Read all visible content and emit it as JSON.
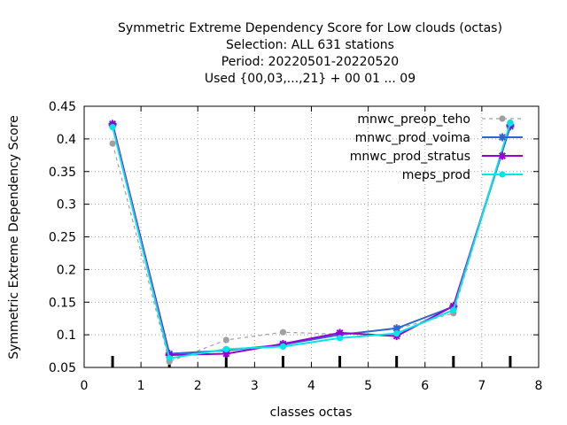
{
  "chart_data": {
    "type": "line",
    "title_lines": [
      "Symmetric Extreme Dependency Score  for Low clouds (octas)",
      "Selection: ALL    631 stations",
      "Period: 20220501-20220520",
      "Used {00,03,...,21} + 00 01 ... 09"
    ],
    "xlabel": "classes octas",
    "ylabel": "Symmetric Extreme Dependency Score",
    "xlim": [
      0,
      8
    ],
    "ylim": [
      0.05,
      0.45
    ],
    "xticks": [
      0,
      1,
      2,
      3,
      4,
      5,
      6,
      7,
      8
    ],
    "yticks": [
      0.05,
      0.1,
      0.15,
      0.2,
      0.25,
      0.3,
      0.35,
      0.4,
      0.45
    ],
    "xtick_labels": [
      "0",
      "1",
      "2",
      "3",
      "4",
      "5",
      "6",
      "7",
      "8"
    ],
    "ytick_labels": [
      "0.05",
      "0.1",
      "0.15",
      "0.2",
      "0.25",
      "0.3",
      "0.35",
      "0.4",
      "0.45"
    ],
    "grid": true,
    "legend_position": "top-right",
    "x": [
      0.5,
      1.5,
      2.5,
      3.5,
      4.5,
      5.5,
      6.5,
      7.5
    ],
    "series": [
      {
        "name": "mnwc_preop_teho",
        "color": "#a0a0a0",
        "dashed": true,
        "marker": "circle",
        "values": [
          0.393,
          0.059,
          0.092,
          0.104,
          0.101,
          0.109,
          0.133,
          0.425
        ]
      },
      {
        "name": "mnwc_prod_voima",
        "color": "#3366cc",
        "dashed": false,
        "marker": "star",
        "values": [
          0.421,
          0.071,
          0.076,
          0.085,
          0.1,
          0.11,
          0.143,
          0.419
        ]
      },
      {
        "name": "mnwc_prod_stratus",
        "color": "#9400d3",
        "dashed": false,
        "marker": "star",
        "values": [
          0.423,
          0.069,
          0.071,
          0.086,
          0.103,
          0.098,
          0.144,
          0.421
        ]
      },
      {
        "name": "meps_prod",
        "color": "#00e5e5",
        "dashed": false,
        "marker": "circle",
        "values": [
          0.418,
          0.064,
          0.078,
          0.082,
          0.095,
          0.102,
          0.138,
          0.424
        ]
      }
    ]
  }
}
